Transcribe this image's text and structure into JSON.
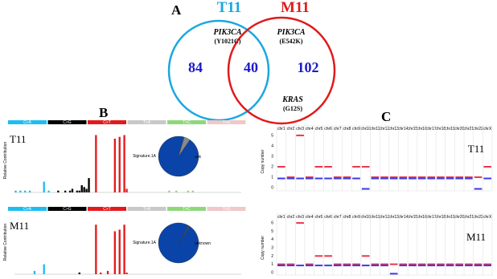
{
  "panel_a": {
    "label": "A",
    "sets": [
      {
        "name": "T11",
        "color": "#1aa7e0",
        "gene": "PIK3CA",
        "mutation": "(Y1021C)"
      },
      {
        "name": "M11",
        "color": "#e01a1a",
        "gene": "PIK3CA",
        "mutation": "(E542K)",
        "gene2": "KRAS",
        "mutation2": "(G12S)"
      }
    ],
    "counts": {
      "only_first": 84,
      "both": 40,
      "only_second": 102
    }
  },
  "panel_b": {
    "label": "B",
    "types": [
      {
        "name": "C>A",
        "color": "#1ebdf0"
      },
      {
        "name": "C>G",
        "color": "#000000"
      },
      {
        "name": "C>T",
        "color": "#e31a1c"
      },
      {
        "name": "T>A",
        "color": "#c8c8c8"
      },
      {
        "name": "T>C",
        "color": "#8fd87a"
      },
      {
        "name": "T>G",
        "color": "#f0c8c8"
      }
    ],
    "ylabel": "Relative Contribution",
    "ylim": [
      0,
      0.34
    ],
    "samples": [
      {
        "name": "T11",
        "values": [
          0.01,
          0,
          0.01,
          0,
          0.01,
          0,
          0.01,
          0,
          0,
          0,
          0,
          0,
          0.06,
          0,
          0.01,
          0,
          0,
          0,
          0.01,
          0,
          0,
          0.01,
          0,
          0.01,
          0.02,
          0,
          0.01,
          0.01,
          0.04,
          0.03,
          0.02,
          0.08,
          0,
          0,
          0.32,
          0,
          0,
          0,
          0,
          0,
          0,
          0,
          0.3,
          0,
          0.31,
          0,
          0.32,
          0.02,
          0,
          0,
          0,
          0,
          0,
          0,
          0,
          0,
          0,
          0,
          0,
          0,
          0,
          0,
          0,
          0,
          0,
          0.01,
          0,
          0,
          0.01,
          0,
          0,
          0,
          0,
          0.01,
          0,
          0.01,
          0,
          0,
          0,
          0,
          0,
          0,
          0,
          0,
          0,
          0,
          0,
          0,
          0,
          0,
          0,
          0,
          0,
          0,
          0,
          0
        ],
        "pie": {
          "labels": [
            "Signature.1A",
            "unk"
          ],
          "values": [
            95,
            5
          ],
          "colors": [
            "#0a44a8",
            "#8a8a8a"
          ]
        }
      },
      {
        "name": "M11",
        "values": [
          0,
          0,
          0,
          0,
          0,
          0,
          0,
          0,
          0.02,
          0,
          0,
          0,
          0.06,
          0,
          0,
          0,
          0,
          0,
          0,
          0,
          0,
          0,
          0,
          0,
          0,
          0,
          0,
          0.01,
          0,
          0,
          0,
          0,
          0,
          0,
          0.3,
          0,
          0.01,
          0,
          0,
          0.02,
          0,
          0,
          0.26,
          0,
          0.27,
          0,
          0.3,
          0.01,
          0,
          0,
          0,
          0,
          0,
          0,
          0,
          0,
          0,
          0,
          0,
          0,
          0,
          0,
          0,
          0,
          0,
          0,
          0,
          0,
          0,
          0,
          0,
          0,
          0,
          0,
          0,
          0,
          0,
          0,
          0,
          0,
          0,
          0,
          0,
          0,
          0,
          0,
          0,
          0,
          0,
          0,
          0,
          0,
          0,
          0,
          0,
          0
        ],
        "pie": {
          "labels": [
            "Signature.1A",
            "unknown"
          ],
          "values": [
            99,
            1
          ],
          "colors": [
            "#0a44a8",
            "#555555"
          ]
        }
      }
    ]
  },
  "panel_c": {
    "label": "C",
    "ylabel": "Copy number",
    "chromosomes": [
      "chr1",
      "chr2",
      "chr3",
      "chr4",
      "chr5",
      "chr6",
      "chr7",
      "chr8",
      "chr9",
      "chr10",
      "chr11",
      "chr12",
      "chr13",
      "chr14",
      "chr15",
      "chr16",
      "chr17",
      "chr18",
      "chr19",
      "chr20",
      "chr21",
      "chr22",
      "chrX"
    ],
    "samples": [
      {
        "name": "T11",
        "ylim": [
          -0.3,
          5.3
        ],
        "yticks": [
          0,
          1,
          2,
          3,
          4,
          5
        ],
        "major": [
          2,
          1,
          5,
          1,
          2,
          2,
          1,
          1,
          2,
          2,
          1,
          1,
          1,
          1,
          1,
          1,
          1,
          1,
          1,
          1,
          1,
          1,
          2
        ],
        "minor": [
          1,
          1,
          1,
          1,
          1,
          1,
          1,
          1,
          1,
          0,
          1,
          1,
          1,
          1,
          1,
          1,
          1,
          1,
          1,
          1,
          1,
          0,
          1
        ]
      },
      {
        "name": "M11",
        "ylim": [
          -0.3,
          6.3
        ],
        "yticks": [
          0,
          1,
          2,
          3,
          4,
          5,
          6
        ],
        "major": [
          1,
          1,
          6,
          1,
          2,
          2,
          1,
          1,
          1,
          2,
          1,
          1,
          1,
          1,
          1,
          1,
          1,
          1,
          1,
          1,
          1,
          1,
          1
        ],
        "minor": [
          1,
          1,
          1,
          1,
          1,
          1,
          1,
          1,
          1,
          1,
          1,
          1,
          0,
          1,
          1,
          1,
          1,
          1,
          1,
          1,
          1,
          1,
          1
        ]
      }
    ]
  }
}
